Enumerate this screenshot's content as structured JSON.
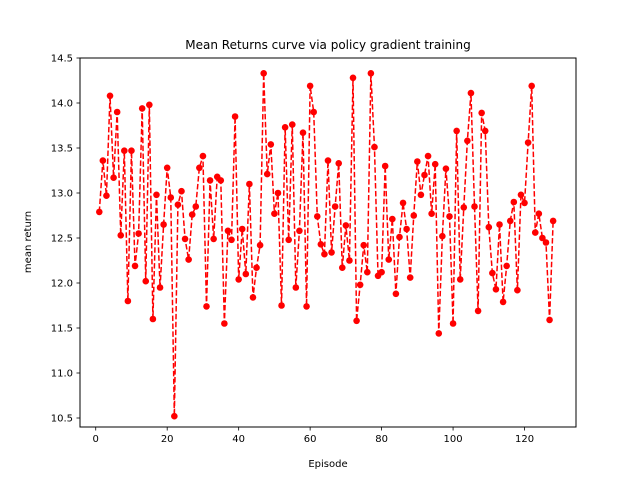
{
  "chart_data": {
    "type": "line",
    "title": "Mean Returns curve via policy gradient training",
    "xlabel": "Episode",
    "ylabel": "mean return",
    "xlim": [
      -4.4,
      134.4
    ],
    "ylim": [
      10.4,
      14.5
    ],
    "xticks": [
      0,
      20,
      40,
      60,
      80,
      100,
      120
    ],
    "yticks": [
      10.5,
      11.0,
      11.5,
      12.0,
      12.5,
      13.0,
      13.5,
      14.0,
      14.5
    ],
    "grid": false,
    "legend": "none",
    "series": [
      {
        "color": "#ff0000",
        "linestyle": "dashed",
        "marker": "circle",
        "x": [
          1,
          2,
          3,
          4,
          5,
          6,
          7,
          8,
          9,
          10,
          11,
          12,
          13,
          14,
          15,
          16,
          17,
          18,
          19,
          20,
          21,
          22,
          23,
          24,
          25,
          26,
          27,
          28,
          29,
          30,
          31,
          32,
          33,
          34,
          35,
          36,
          37,
          38,
          39,
          40,
          41,
          42,
          43,
          44,
          45,
          46,
          47,
          48,
          49,
          50,
          51,
          52,
          53,
          54,
          55,
          56,
          57,
          58,
          59,
          60,
          61,
          62,
          63,
          64,
          65,
          66,
          67,
          68,
          69,
          70,
          71,
          72,
          73,
          74,
          75,
          76,
          77,
          78,
          79,
          80,
          81,
          82,
          83,
          84,
          85,
          86,
          87,
          88,
          89,
          90,
          91,
          92,
          93,
          94,
          95,
          96,
          97,
          98,
          99,
          100,
          101,
          102,
          103,
          104,
          105,
          106,
          107,
          108,
          109,
          110,
          111,
          112,
          113,
          114,
          115,
          116,
          117,
          118,
          119,
          120,
          121,
          122,
          123,
          124,
          125,
          126,
          127,
          128
        ],
        "y": [
          12.79,
          13.36,
          12.97,
          14.08,
          13.17,
          13.9,
          12.53,
          13.47,
          11.8,
          13.47,
          12.19,
          12.55,
          13.94,
          12.02,
          13.98,
          11.6,
          12.98,
          11.95,
          12.65,
          13.28,
          12.95,
          10.52,
          12.87,
          13.02,
          12.49,
          12.26,
          12.76,
          12.85,
          13.28,
          13.41,
          11.74,
          13.14,
          12.49,
          13.18,
          13.14,
          11.55,
          12.58,
          12.48,
          13.85,
          12.04,
          12.6,
          12.1,
          13.1,
          11.84,
          12.17,
          12.42,
          14.33,
          13.21,
          13.54,
          12.77,
          13.0,
          11.75,
          13.73,
          12.48,
          13.76,
          11.95,
          12.58,
          13.67,
          11.74,
          14.19,
          13.9,
          12.74,
          12.43,
          12.32,
          13.36,
          12.34,
          12.85,
          13.33,
          12.17,
          12.64,
          12.25,
          14.28,
          11.58,
          11.98,
          12.42,
          12.12,
          14.33,
          13.51,
          12.08,
          12.12,
          13.3,
          12.26,
          12.71,
          11.88,
          12.51,
          12.89,
          12.6,
          12.06,
          12.75,
          13.35,
          12.98,
          13.2,
          13.41,
          12.77,
          13.32,
          11.44,
          12.52,
          13.27,
          12.74,
          11.55,
          13.69,
          12.04,
          12.84,
          13.58,
          14.11,
          12.85,
          11.69,
          13.89,
          13.69,
          12.62,
          12.11,
          11.93,
          12.65,
          11.79,
          12.19,
          12.69,
          12.9,
          11.92,
          12.98,
          12.89,
          13.56,
          14.19,
          12.56,
          12.77,
          12.5,
          12.45,
          11.59,
          12.69
        ]
      }
    ]
  }
}
